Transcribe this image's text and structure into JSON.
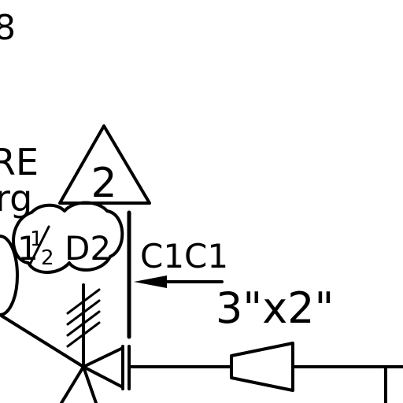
{
  "drawing": {
    "corner_number": "8",
    "partial_label_top": "RE",
    "partial_label_bottom": "rg",
    "revision_triangle": {
      "number": "2"
    },
    "pipe_size_bubble": {
      "whole": "1",
      "fraction_numerator": "1",
      "fraction_denominator": "2",
      "suffix": "D2"
    },
    "line_label": "C1C1",
    "reducer_size": "3\"x2\""
  },
  "colors": {
    "ink": "#000000",
    "paper": "#ffffff"
  }
}
